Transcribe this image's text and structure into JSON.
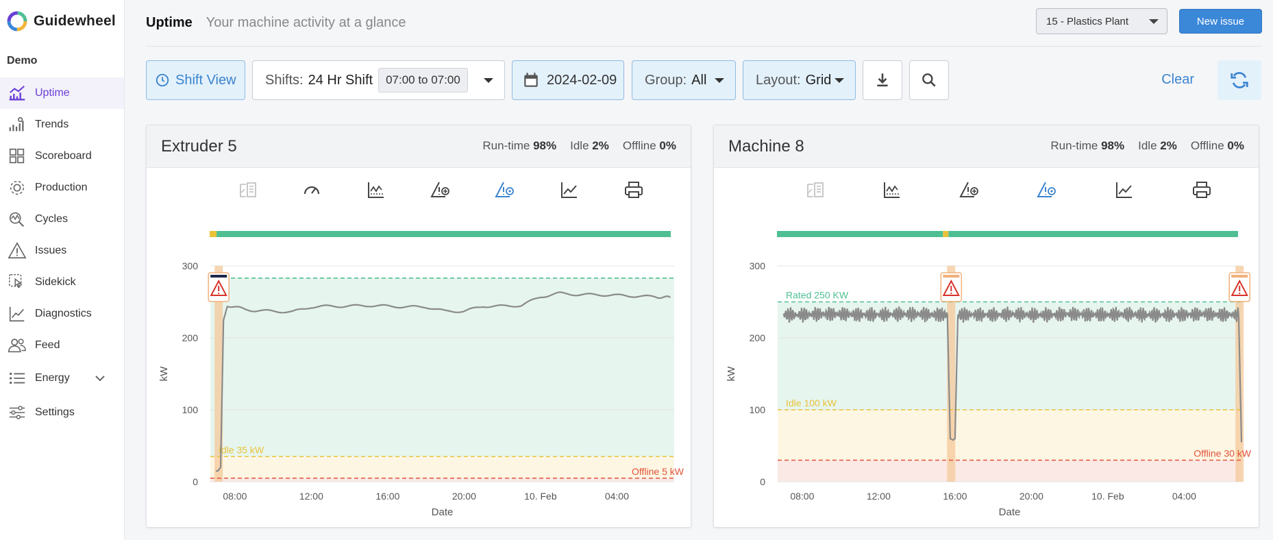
{
  "app": {
    "brand": "Guidewheel",
    "org": "Demo"
  },
  "colors": {
    "accent": "#6a3fd6",
    "primary": "#3b87d8",
    "run": "#4fbf93",
    "idle": "#e9c23a",
    "offline": "#e0533a",
    "line": "#8a8a8a"
  },
  "sidebar": {
    "items": [
      {
        "label": "Uptime",
        "icon": "uptime-chart-icon",
        "active": true
      },
      {
        "label": "Trends",
        "icon": "trends-icon"
      },
      {
        "label": "Scoreboard",
        "icon": "grid-icon"
      },
      {
        "label": "Production",
        "icon": "gear-cycle-icon"
      },
      {
        "label": "Cycles",
        "icon": "cycles-icon"
      },
      {
        "label": "Issues",
        "icon": "warning-icon"
      },
      {
        "label": "Sidekick",
        "icon": "sidekick-icon"
      },
      {
        "label": "Diagnostics",
        "icon": "diagnostics-icon"
      },
      {
        "label": "Feed",
        "icon": "people-icon"
      },
      {
        "label": "Energy",
        "icon": "list-icon"
      },
      {
        "label": "Settings",
        "icon": "sliders-icon"
      }
    ]
  },
  "header": {
    "title": "Uptime",
    "subtitle": "Your machine activity at a glance",
    "plant": "15 - Plastics Plant",
    "new_issue": "New issue"
  },
  "toolbar": {
    "shift_view": "Shift View",
    "shifts_label": "Shifts:",
    "shifts_value": "24 Hr Shift",
    "time_range": "07:00 to 07:00",
    "date": "2024-02-09",
    "group_label": "Group:",
    "group_value": "All",
    "layout_label": "Layout:",
    "layout_value": "Grid",
    "clear": "Clear"
  },
  "cards": [
    {
      "title": "Extruder 5",
      "runtime_label": "Run-time",
      "runtime": "98%",
      "idle_label": "Idle",
      "idle": "2%",
      "offline_label": "Offline",
      "offline": "0%"
    },
    {
      "title": "Machine 8",
      "runtime_label": "Run-time",
      "runtime": "98%",
      "idle_label": "Idle",
      "idle": "2%",
      "offline_label": "Offline",
      "offline": "0%"
    }
  ],
  "chart_data": [
    {
      "type": "line",
      "title": "Extruder 5",
      "xlabel": "Date",
      "ylabel": "kW",
      "ylim": [
        0,
        300
      ],
      "yticks": [
        "0",
        "100",
        "200",
        "300"
      ],
      "xticks": [
        "08:00",
        "12:00",
        "16:00",
        "20:00",
        "10. Feb",
        "04:00"
      ],
      "thresholds": [
        {
          "label": "",
          "value": 283,
          "color": "#4fbf93"
        },
        {
          "label": "Idle 35 kW",
          "value": 35,
          "color": "#e9c23a"
        },
        {
          "label": "Offline 5 kW",
          "value": 5,
          "color": "#e0533a"
        }
      ],
      "x_hours": [
        0,
        0.1,
        0.25,
        0.4,
        0.6,
        1.5,
        2,
        3,
        4,
        5,
        6,
        7,
        8,
        9,
        10,
        11,
        12,
        13,
        14,
        15,
        16,
        17,
        18,
        19,
        20,
        21,
        22,
        23,
        23.8
      ],
      "values": [
        15,
        15,
        20,
        225,
        245,
        240,
        238,
        237,
        236,
        243,
        244,
        244,
        245,
        244,
        243,
        243,
        237,
        237,
        244,
        244,
        245,
        257,
        262,
        260,
        260,
        259,
        258,
        257,
        256
      ],
      "status_bar": [
        [
          "idle",
          0.015
        ],
        [
          "run",
          0.985
        ]
      ],
      "markers": [
        0.15
      ]
    },
    {
      "type": "line",
      "title": "Machine 8",
      "xlabel": "Date",
      "ylabel": "kW",
      "ylim": [
        0,
        300
      ],
      "yticks": [
        "0",
        "100",
        "200",
        "300"
      ],
      "xticks": [
        "08:00",
        "12:00",
        "16:00",
        "20:00",
        "10. Feb",
        "04:00"
      ],
      "thresholds": [
        {
          "label": "Rated 250 KW",
          "value": 250,
          "color": "#4fbf93"
        },
        {
          "label": "Idle 100 kW",
          "value": 100,
          "color": "#e9c23a"
        },
        {
          "label": "Offline 30 kW",
          "value": 30,
          "color": "#e0533a"
        }
      ],
      "x_hours": [
        0,
        1,
        2,
        3,
        4,
        5,
        6,
        7,
        8,
        8.6,
        8.75,
        8.9,
        9.0,
        9.15,
        10,
        11,
        12,
        13,
        14,
        15,
        16,
        17,
        18,
        19,
        20,
        21,
        22,
        23,
        23.85,
        24
      ],
      "values": [
        232,
        232,
        233,
        233,
        232,
        232,
        233,
        233,
        232,
        232,
        60,
        58,
        60,
        232,
        232,
        232,
        233,
        232,
        232,
        233,
        232,
        232,
        233,
        232,
        232,
        232,
        233,
        232,
        232,
        55
      ],
      "status_bar": [
        [
          "run",
          0.36
        ],
        [
          "idle",
          0.012
        ],
        [
          "run",
          0.628
        ]
      ],
      "markers": [
        8.8,
        23.9
      ]
    }
  ]
}
